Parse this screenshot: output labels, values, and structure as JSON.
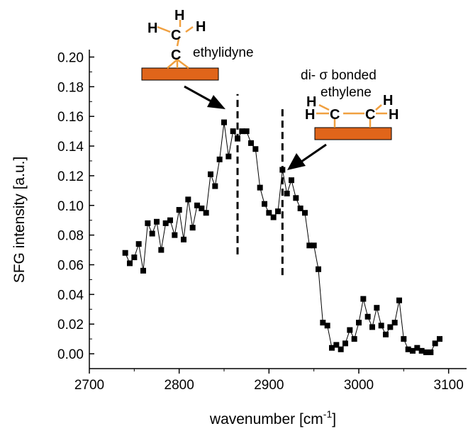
{
  "chart_data": {
    "type": "scatter",
    "title": "",
    "xlabel": "wavenumber [cm",
    "xlabel_sup": "-1",
    "xlabel_end": "]",
    "ylabel": "SFG intensity [a.u.]",
    "xlim": [
      2700,
      3120
    ],
    "ylim": [
      -0.01,
      0.205
    ],
    "x_ticks": [
      2700,
      2800,
      2900,
      3000,
      3100
    ],
    "x_tick_labels": [
      "2700",
      "2800",
      "2900",
      "3000",
      "3100"
    ],
    "y_ticks": [
      0.0,
      0.02,
      0.04,
      0.06,
      0.08,
      0.1,
      0.12,
      0.14,
      0.16,
      0.18,
      0.2
    ],
    "y_tick_labels": [
      "0.00",
      "0.02",
      "0.04",
      "0.06",
      "0.08",
      "0.10",
      "0.12",
      "0.14",
      "0.16",
      "0.18",
      "0.20"
    ],
    "grid": false,
    "marker_color": "#000000",
    "series": [
      {
        "x": [
          2740,
          2745,
          2750,
          2755,
          2760,
          2765,
          2770,
          2775,
          2780,
          2785,
          2790,
          2795,
          2800,
          2805,
          2810,
          2815,
          2820,
          2825,
          2830,
          2835,
          2840,
          2845,
          2850,
          2855,
          2860,
          2865,
          2870,
          2875,
          2880,
          2885,
          2890,
          2895,
          2900,
          2905,
          2910,
          2915,
          2920,
          2925,
          2930,
          2935,
          2940,
          2945,
          2950,
          2955,
          2960,
          2965,
          2970,
          2975,
          2980,
          2985,
          2990,
          2995,
          3000,
          3005,
          3010,
          3015,
          3020,
          3025,
          3030,
          3035,
          3040,
          3045,
          3050,
          3055,
          3060,
          3065,
          3070,
          3075,
          3080,
          3085,
          3090
        ],
        "y": [
          0.068,
          0.061,
          0.065,
          0.074,
          0.056,
          0.088,
          0.081,
          0.089,
          0.07,
          0.088,
          0.09,
          0.08,
          0.097,
          0.077,
          0.104,
          0.085,
          0.1,
          0.098,
          0.095,
          0.121,
          0.113,
          0.131,
          0.156,
          0.133,
          0.15,
          0.145,
          0.15,
          0.15,
          0.142,
          0.138,
          0.112,
          0.101,
          0.095,
          0.092,
          0.096,
          0.124,
          0.108,
          0.117,
          0.105,
          0.098,
          0.095,
          0.073,
          0.073,
          0.057,
          0.021,
          0.019,
          0.004,
          0.006,
          0.003,
          0.007,
          0.016,
          0.01,
          0.021,
          0.037,
          0.025,
          0.018,
          0.031,
          0.019,
          0.013,
          0.018,
          0.021,
          0.036,
          0.01,
          0.003,
          0.002,
          0.004,
          0.002,
          0.001,
          0.001,
          0.007,
          0.01
        ]
      }
    ],
    "reference_lines": [
      {
        "x": 2865,
        "y_from": 0.067,
        "y_to": 0.175
      },
      {
        "x": 2915,
        "y_from": 0.053,
        "y_to": 0.165
      }
    ],
    "annotations": [
      {
        "text": "ethylidyne",
        "target_x": 2862,
        "target_y": 0.15
      },
      {
        "text": "di- σ bonded",
        "target_x": 2915,
        "target_y": 0.122
      },
      {
        "text": "ethylene",
        "target_x": 2915,
        "target_y": 0.122
      }
    ],
    "surface_color": "#e0651a",
    "bond_color": "#f0a040"
  }
}
